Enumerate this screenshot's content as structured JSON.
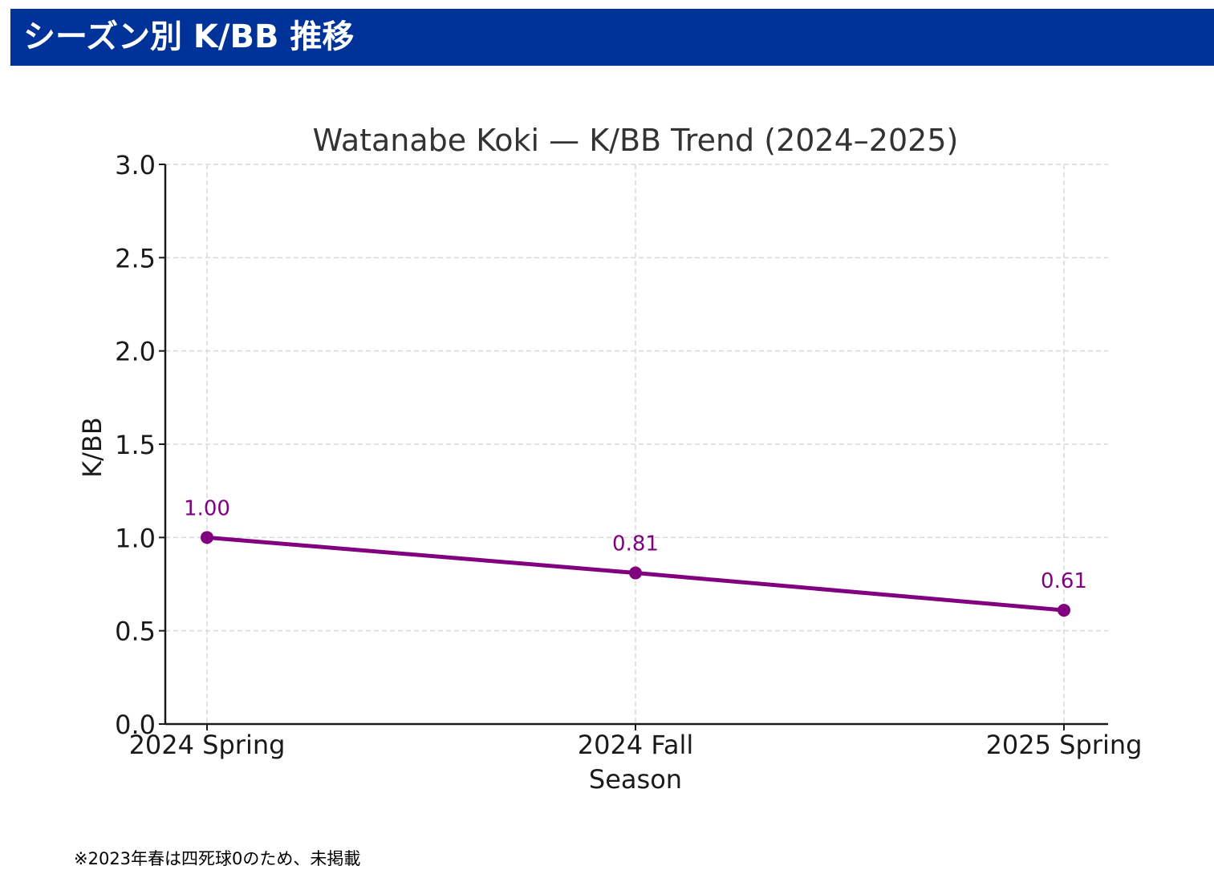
{
  "header": {
    "title": "シーズン別 K/BB 推移"
  },
  "footnote": "※2023年春は四死球0のため、未掲載",
  "colors": {
    "header_bg": "#003399",
    "line": "#800080",
    "grid": "#d9d9d9",
    "text": "#333333"
  },
  "chart_data": {
    "type": "line",
    "title": "Watanabe Koki — K/BB Trend (2024–2025)",
    "xlabel": "Season",
    "ylabel": "K/BB",
    "categories": [
      "2024 Spring",
      "2024 Fall",
      "2025 Spring"
    ],
    "series": [
      {
        "values": [
          1.0,
          0.81,
          0.61
        ],
        "data_labels": [
          "1.00",
          "0.81",
          "0.61"
        ]
      }
    ],
    "ylim": [
      0,
      3.0
    ],
    "yticks": [
      "0.0",
      "0.5",
      "1.0",
      "1.5",
      "2.0",
      "2.5",
      "3.0"
    ],
    "grid": true
  }
}
